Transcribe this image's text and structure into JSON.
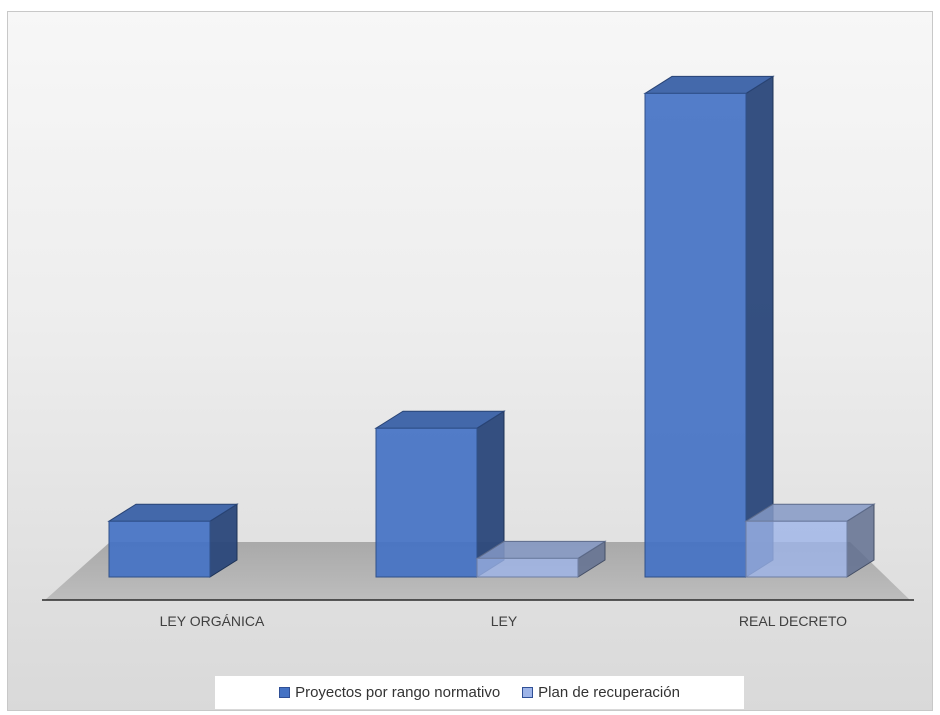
{
  "chart_data": {
    "type": "bar",
    "title": "",
    "xlabel": "",
    "ylabel": "",
    "categories": [
      "LEY ORGÁNICA",
      "LEY",
      "REAL DECRETO"
    ],
    "series": [
      {
        "name": "Proyectos por rango normativo",
        "values": [
          3,
          8,
          26
        ],
        "color": "#4472c4"
      },
      {
        "name": "Plan de recuperación",
        "values": [
          0,
          1,
          3
        ],
        "color": "#9db4e8"
      }
    ],
    "ylim": [
      0,
      27
    ],
    "grid": false,
    "legend": "bottom",
    "style": "3d-column"
  }
}
